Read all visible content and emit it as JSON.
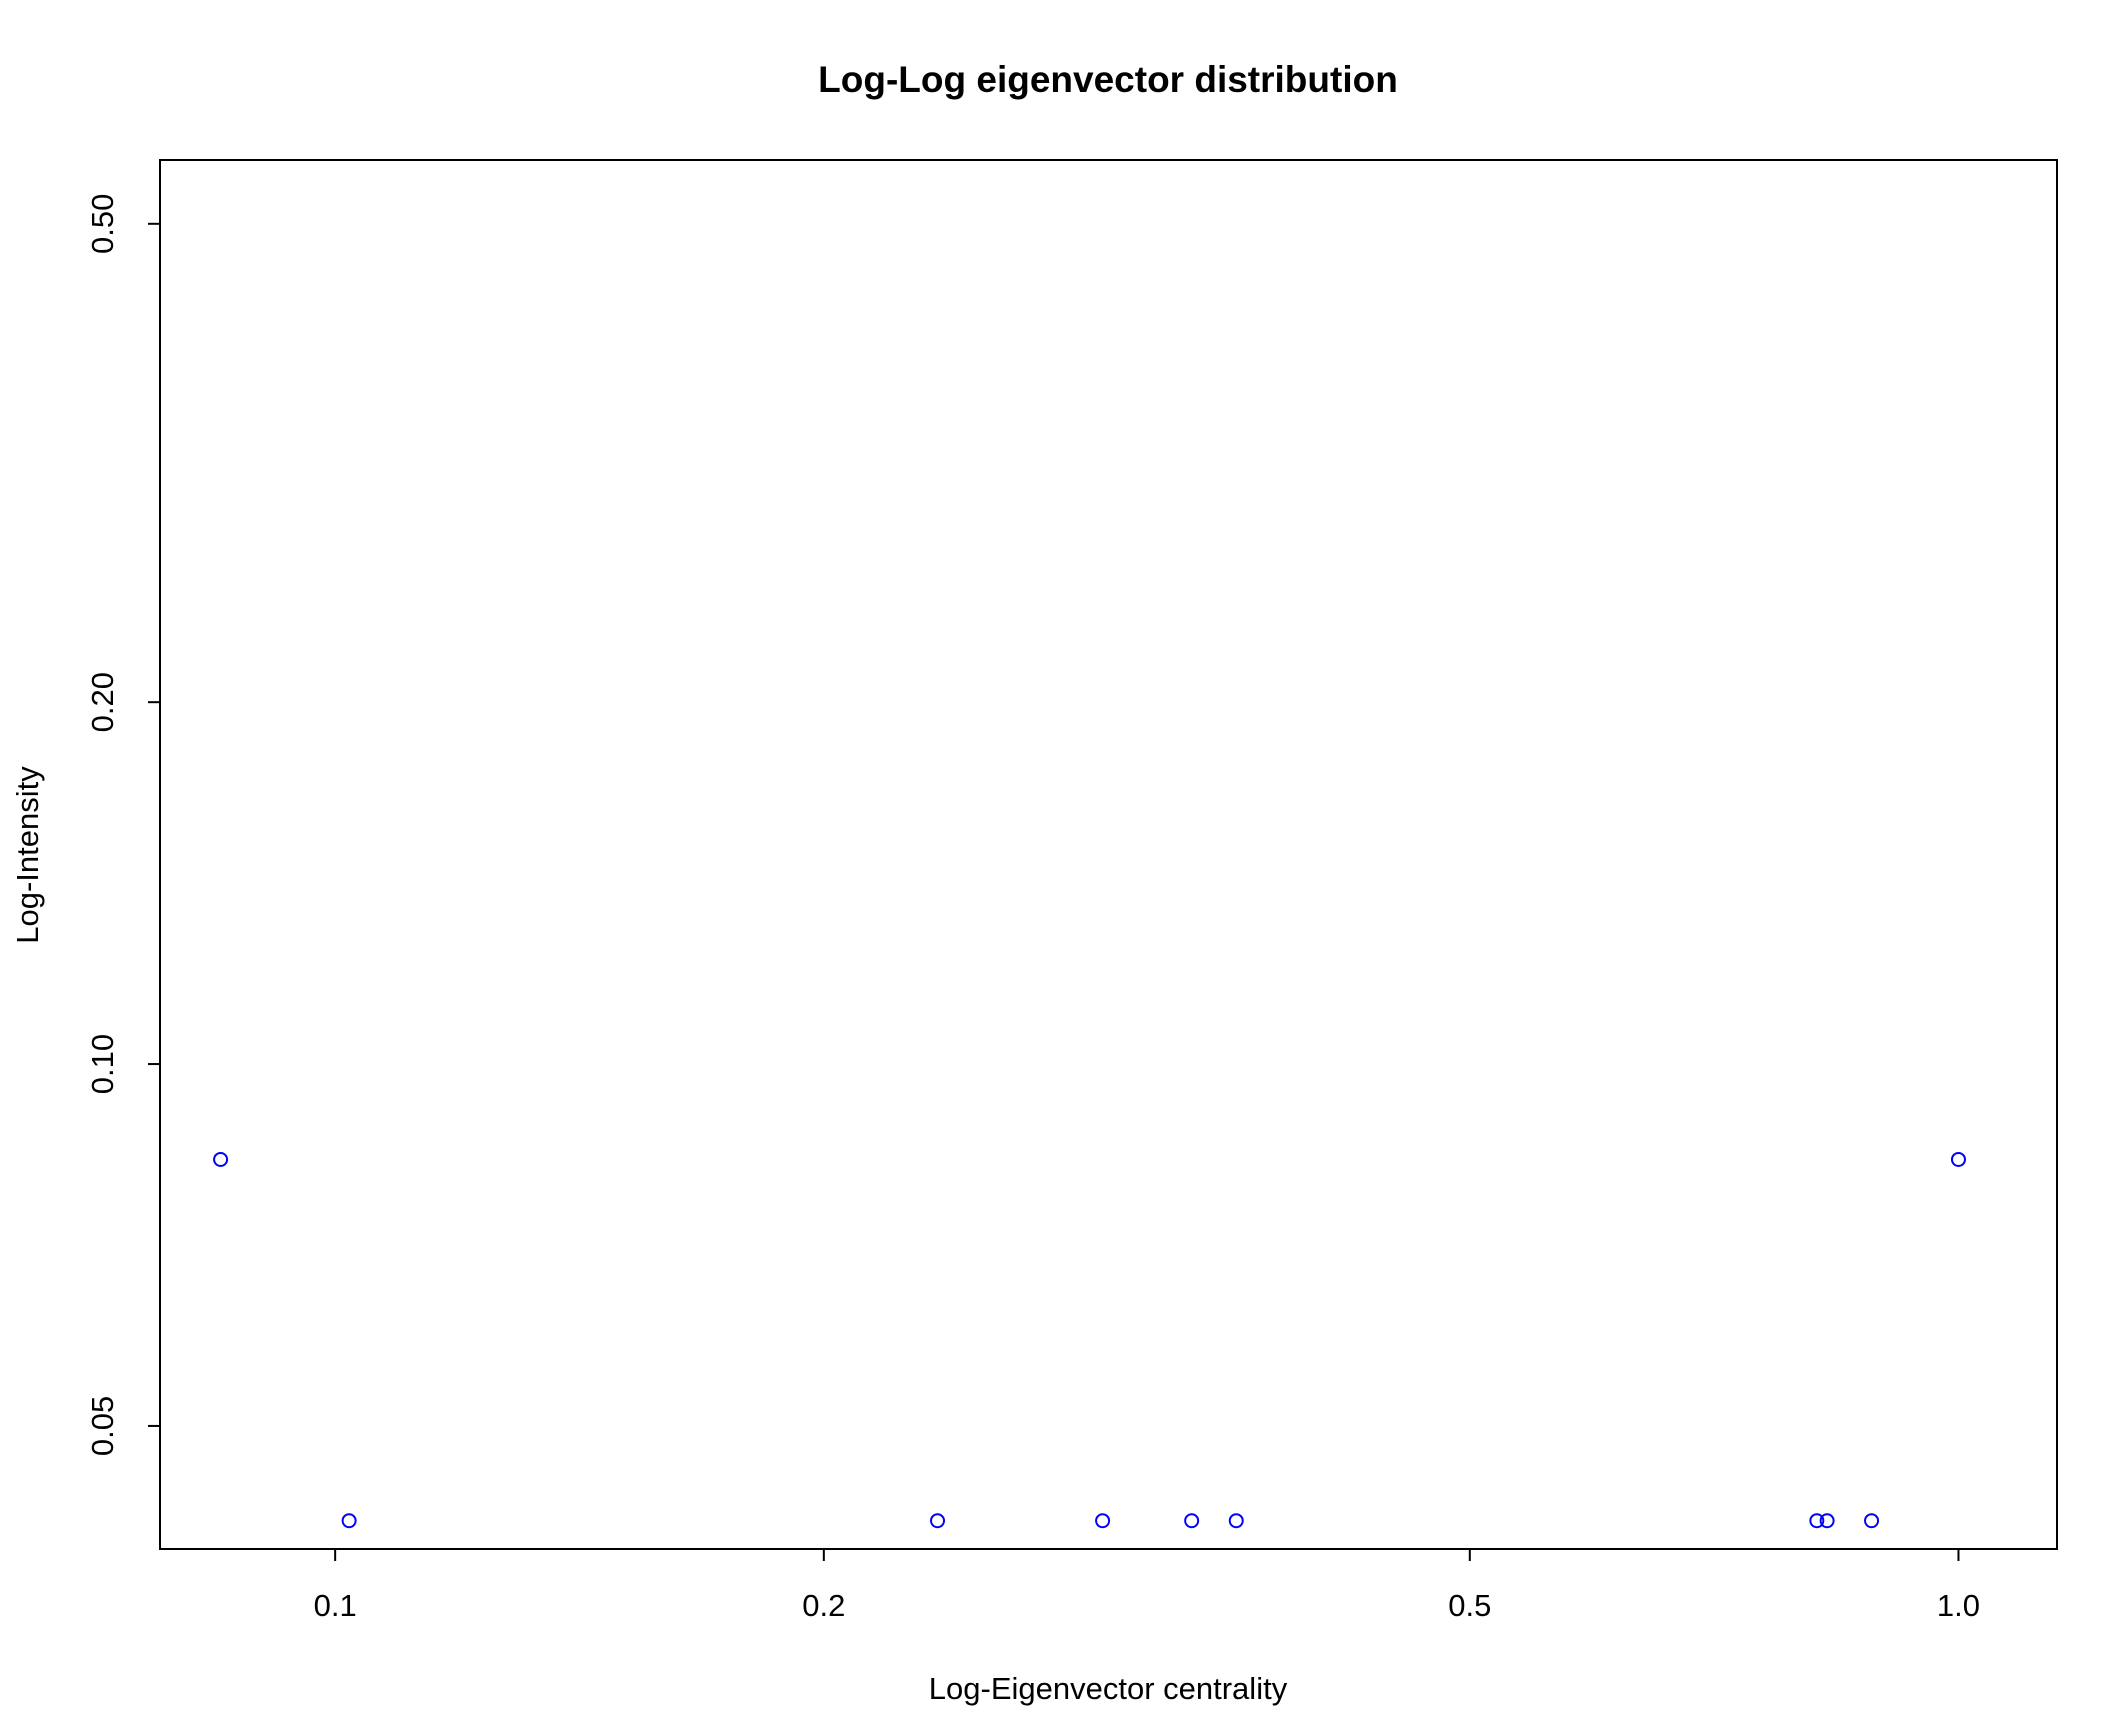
{
  "chart_data": {
    "type": "scatter",
    "title": "Log-Log eigenvector distribution",
    "xlabel": "Log-Eigenvector centrality",
    "ylabel": "Log-Intensity",
    "x_scale": "log",
    "y_scale": "log",
    "xlim": [
      0.078,
      1.15
    ],
    "ylim": [
      0.0395,
      0.565
    ],
    "x_ticks": [
      {
        "value": 0.1,
        "label": "0.1"
      },
      {
        "value": 0.2,
        "label": "0.2"
      },
      {
        "value": 0.5,
        "label": "0.5"
      },
      {
        "value": 1.0,
        "label": "1.0"
      }
    ],
    "y_ticks": [
      {
        "value": 0.05,
        "label": "0.05"
      },
      {
        "value": 0.1,
        "label": "0.10"
      },
      {
        "value": 0.2,
        "label": "0.20"
      },
      {
        "value": 0.5,
        "label": "0.50"
      }
    ],
    "marker": "open-circle",
    "color": "#0000ff",
    "grid": false,
    "points": [
      {
        "x": 0.085,
        "y": 0.0833
      },
      {
        "x": 0.102,
        "y": 0.0417
      },
      {
        "x": 0.235,
        "y": 0.0417
      },
      {
        "x": 0.297,
        "y": 0.0417
      },
      {
        "x": 0.337,
        "y": 0.0417
      },
      {
        "x": 0.359,
        "y": 0.0417
      },
      {
        "x": 0.818,
        "y": 0.0417
      },
      {
        "x": 0.83,
        "y": 0.0417
      },
      {
        "x": 0.884,
        "y": 0.0417
      },
      {
        "x": 1.0,
        "y": 0.0833
      }
    ]
  }
}
